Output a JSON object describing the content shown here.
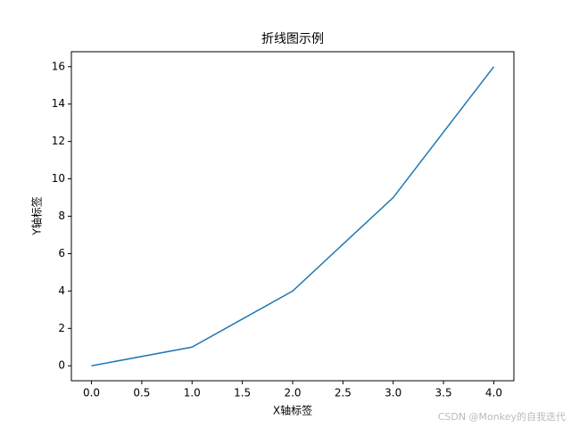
{
  "chart_data": {
    "type": "line",
    "title": "折线图示例",
    "x_label": "X轴标签",
    "y_label": "Y轴标签",
    "x": [
      0,
      1,
      2,
      3,
      4
    ],
    "series": [
      {
        "name": "y",
        "color": "#1f77b4",
        "values": [
          0,
          1,
          4,
          9,
          16
        ]
      }
    ],
    "xlim": [
      -0.2,
      4.2
    ],
    "xticks": [
      {
        "value": 0,
        "label": "0.0"
      },
      {
        "value": 0.5,
        "label": "0.5"
      },
      {
        "value": 1,
        "label": "1.0"
      },
      {
        "value": 1.5,
        "label": "1.5"
      },
      {
        "value": 2,
        "label": "2.0"
      },
      {
        "value": 2.5,
        "label": "2.5"
      },
      {
        "value": 3,
        "label": "3.0"
      },
      {
        "value": 3.5,
        "label": "3.5"
      },
      {
        "value": 4,
        "label": "4.0"
      }
    ],
    "ylim": [
      -0.8,
      16.8
    ],
    "yticks": [
      0,
      2,
      4,
      6,
      8,
      10,
      12,
      14,
      16
    ],
    "grid": false,
    "watermark": "CSDN @Monkey的自我迭代"
  }
}
